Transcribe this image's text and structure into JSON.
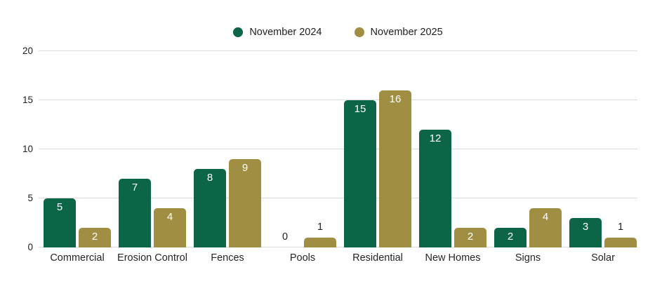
{
  "colors": {
    "series_green": "#0b6546",
    "series_gold": "#a08e43",
    "gridline": "#dbdbdb",
    "text": "#1f1f1f",
    "value_label_inside": "#ffffff"
  },
  "chart_data": {
    "type": "bar",
    "title": "",
    "categories": [
      "Commercial",
      "Erosion Control",
      "Fences",
      "Pools",
      "Residential",
      "New Homes",
      "Signs",
      "Solar"
    ],
    "series": [
      {
        "name": "November 2024",
        "color": "#0b6546",
        "values": [
          5,
          7,
          8,
          0,
          15,
          12,
          2,
          3
        ]
      },
      {
        "name": "November 2025",
        "color": "#a08e43",
        "values": [
          2,
          4,
          9,
          1,
          16,
          2,
          4,
          1
        ]
      }
    ],
    "ylim": [
      0,
      20
    ],
    "yticks": [
      0,
      5,
      10,
      15,
      20
    ],
    "grid": true,
    "legend_position": "top-center",
    "value_labels": "on-bars",
    "value_label_rule": "white inside bar top when value >= 2, dark above bar when value <= 1"
  }
}
